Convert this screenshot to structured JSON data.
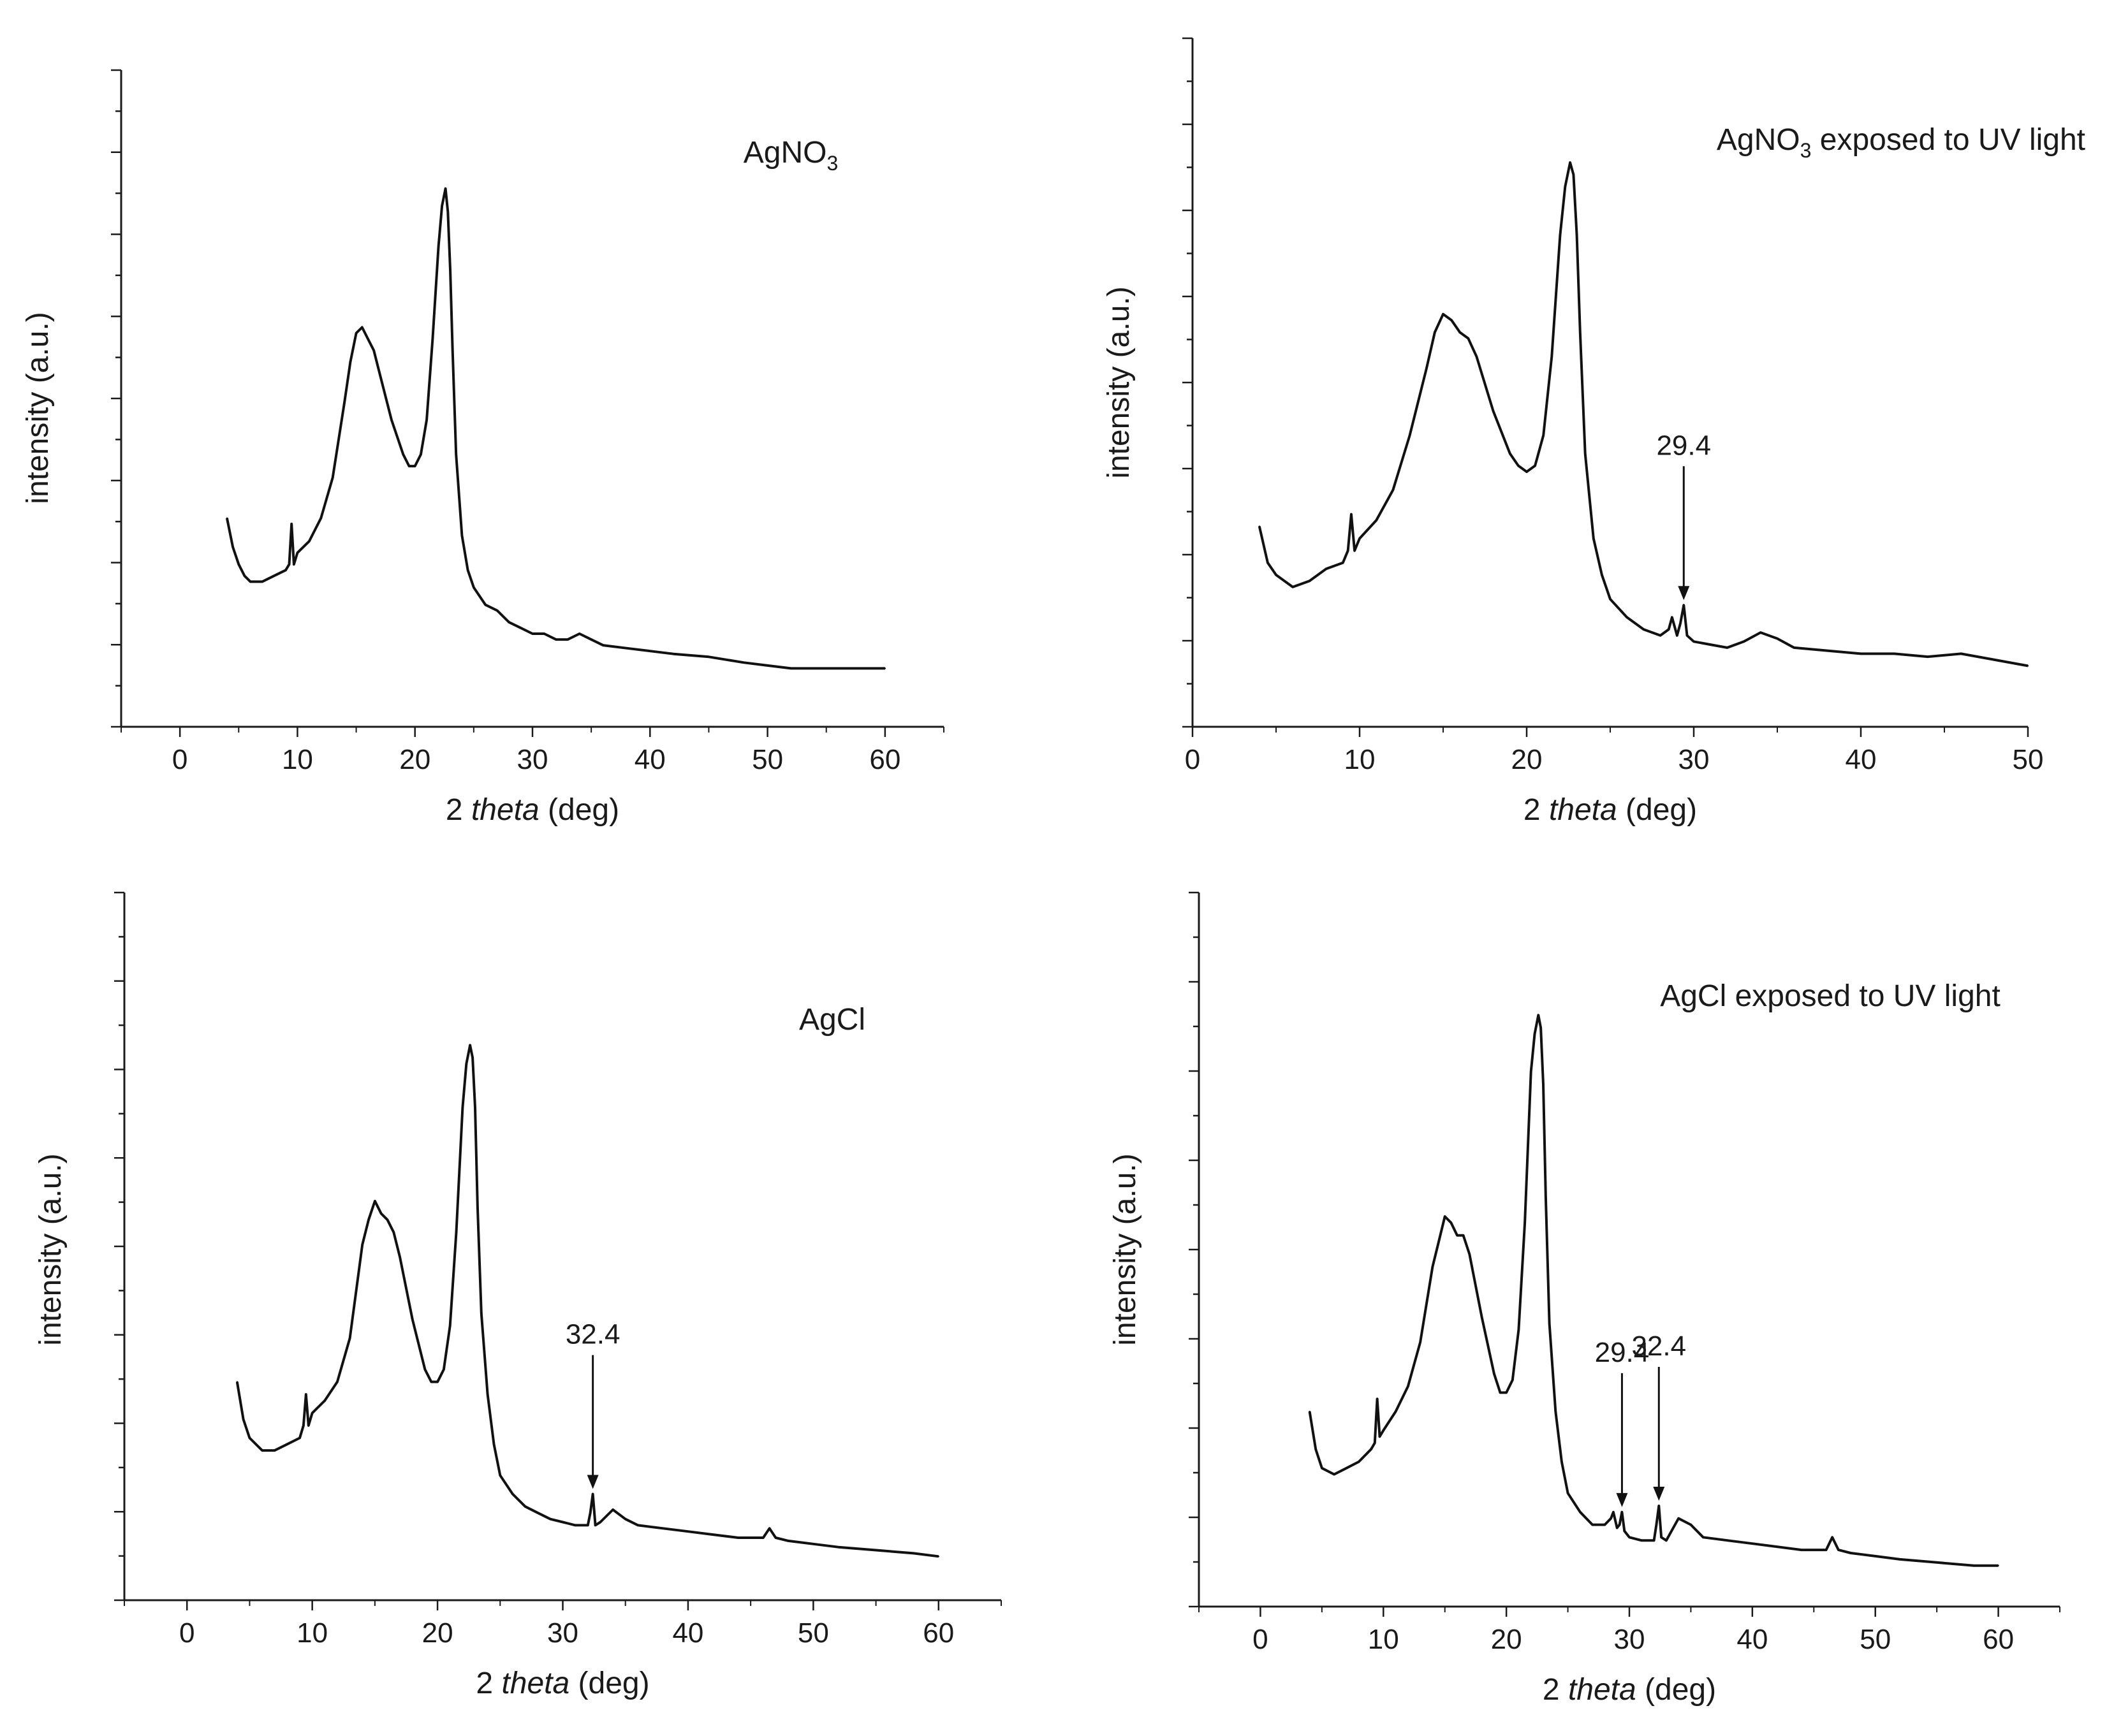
{
  "chart_data": [
    {
      "type": "line",
      "title": "AgNO",
      "title_sub": "3",
      "title_rest": "",
      "xlabel_num": "2",
      "xlabel_var": "theta",
      "xlabel_unit": "(deg)",
      "ylabel": "intensity (a.u.)",
      "xlim": [
        -5,
        65
      ],
      "ylim": [
        0,
        100
      ],
      "xticks": [
        0,
        10,
        20,
        30,
        40,
        50,
        60
      ],
      "tick_labels": [
        "0",
        "10",
        "20",
        "30",
        "40",
        "50",
        "60"
      ],
      "grid": false,
      "series": [
        {
          "name": "AgNO3",
          "x": [
            4,
            4.5,
            5,
            5.5,
            6,
            7,
            8,
            9,
            9.3,
            9.5,
            9.7,
            10,
            11,
            12,
            13,
            14,
            14.5,
            15,
            15.5,
            16,
            16.5,
            17,
            18,
            19,
            19.5,
            20,
            20.5,
            21,
            21.5,
            22,
            22.3,
            22.6,
            22.8,
            23,
            23.2,
            23.5,
            24,
            24.5,
            25,
            26,
            27,
            28,
            29,
            30,
            31,
            32,
            33,
            34,
            35,
            36,
            38,
            40,
            42,
            45,
            48,
            50,
            52,
            55,
            58,
            60
          ],
          "y": [
            35,
            30,
            27,
            25,
            24,
            24,
            25,
            26,
            27,
            34,
            27,
            29,
            31,
            35,
            42,
            55,
            62,
            67,
            68,
            66,
            64,
            60,
            52,
            46,
            44,
            44,
            46,
            52,
            66,
            82,
            89,
            92,
            88,
            78,
            64,
            46,
            32,
            26,
            23,
            20,
            19,
            17,
            16,
            15,
            15,
            14,
            14,
            15,
            14,
            13,
            12.5,
            12,
            11.5,
            11,
            10,
            9.5,
            9,
            9,
            9,
            9
          ]
        }
      ],
      "annotations": []
    },
    {
      "type": "line",
      "title": "AgNO",
      "title_sub": "3",
      "title_rest": " exposed to UV light",
      "xlabel_num": "2",
      "xlabel_var": "theta",
      "xlabel_unit": "(deg)",
      "ylabel": "intensity (a.u.)",
      "xlim": [
        0,
        50
      ],
      "ylim": [
        0,
        100
      ],
      "xticks": [
        0,
        10,
        20,
        30,
        40,
        50
      ],
      "tick_labels": [
        "0",
        "10",
        "20",
        "30",
        "40",
        "50"
      ],
      "grid": false,
      "series": [
        {
          "name": "AgNO3 exposed to UV light",
          "x": [
            4,
            4.5,
            5,
            6,
            7,
            8,
            9,
            9.3,
            9.5,
            9.7,
            10,
            11,
            12,
            13,
            14,
            14.5,
            15,
            15.5,
            16,
            16.5,
            17,
            18,
            19,
            19.5,
            20,
            20.5,
            21,
            21.5,
            22,
            22.3,
            22.6,
            22.8,
            23,
            23.2,
            23.5,
            24,
            24.5,
            25,
            26,
            27,
            28,
            28.5,
            28.7,
            29,
            29.2,
            29.4,
            29.6,
            30,
            31,
            32,
            33,
            34,
            35,
            36,
            38,
            40,
            42,
            44,
            46,
            47,
            48,
            50
          ],
          "y": [
            32,
            26,
            24,
            22,
            23,
            25,
            26,
            28,
            34,
            28,
            30,
            33,
            38,
            47,
            58,
            64,
            67,
            66,
            64,
            63,
            60,
            51,
            44,
            42,
            41,
            42,
            47,
            60,
            80,
            88,
            92,
            90,
            80,
            64,
            44,
            30,
            24,
            20,
            17,
            15,
            14,
            15,
            17,
            14,
            16,
            19,
            14,
            13,
            12.5,
            12,
            13,
            14.5,
            13.5,
            12,
            11.5,
            11,
            11,
            10.5,
            11,
            10.5,
            10,
            9
          ]
        }
      ],
      "annotations": [
        {
          "label": "29.4",
          "x": 29.4,
          "y": 19
        }
      ]
    },
    {
      "type": "line",
      "title": "AgCl",
      "title_sub": "",
      "title_rest": "",
      "xlabel_num": "2",
      "xlabel_var": "theta",
      "xlabel_unit": "(deg)",
      "ylabel": "intensity (a.u.)",
      "xlim": [
        -5,
        65
      ],
      "ylim": [
        0,
        100
      ],
      "xticks": [
        0,
        10,
        20,
        30,
        40,
        50,
        60
      ],
      "tick_labels": [
        "0",
        "10",
        "20",
        "30",
        "40",
        "50",
        "60"
      ],
      "grid": false,
      "series": [
        {
          "name": "AgCl",
          "x": [
            4,
            4.5,
            5,
            6,
            7,
            8,
            9,
            9.3,
            9.5,
            9.7,
            10,
            11,
            12,
            13,
            14,
            14.5,
            15,
            15.5,
            16,
            16.5,
            17,
            18,
            19,
            19.5,
            20,
            20.5,
            21,
            21.5,
            22,
            22.3,
            22.6,
            22.8,
            23,
            23.2,
            23.5,
            24,
            24.5,
            25,
            26,
            27,
            28,
            29,
            30,
            31,
            32,
            32.2,
            32.4,
            32.6,
            33,
            34,
            35,
            36,
            38,
            40,
            42,
            44,
            46,
            46.5,
            47,
            48,
            50,
            52,
            55,
            58,
            60
          ],
          "y": [
            34,
            28,
            25,
            23,
            23,
            24,
            25,
            27,
            32,
            27,
            29,
            31,
            34,
            41,
            56,
            60,
            63,
            61,
            60,
            58,
            54,
            44,
            36,
            34,
            34,
            36,
            43,
            58,
            78,
            85,
            88,
            86,
            78,
            62,
            45,
            32,
            24,
            19,
            16,
            14,
            13,
            12,
            11.5,
            11,
            11,
            13,
            16,
            11,
            11.5,
            13.5,
            12,
            11,
            10.5,
            10,
            9.5,
            9,
            9,
            10.5,
            9,
            8.5,
            8,
            7.5,
            7,
            6.5,
            6
          ]
        }
      ],
      "annotations": [
        {
          "label": "32.4",
          "x": 32.4,
          "y": 16
        }
      ]
    },
    {
      "type": "line",
      "title": "AgCl exposed to UV light",
      "title_sub": "",
      "title_rest": "",
      "xlabel_num": "2",
      "xlabel_var": "theta",
      "xlabel_unit": "(deg)",
      "ylabel": "intensity (a.u.)",
      "xlim": [
        -5,
        65
      ],
      "ylim": [
        0,
        100
      ],
      "xticks": [
        0,
        10,
        20,
        30,
        40,
        50,
        60
      ],
      "tick_labels": [
        "0",
        "10",
        "20",
        "30",
        "40",
        "50",
        "60"
      ],
      "grid": false,
      "series": [
        {
          "name": "AgCl exposed to UV light",
          "x": [
            4,
            4.5,
            5,
            6,
            7,
            8,
            9,
            9.3,
            9.5,
            9.7,
            10,
            11,
            12,
            13,
            14,
            14.5,
            15,
            15.5,
            16,
            16.5,
            17,
            18,
            19,
            19.5,
            20,
            20.5,
            21,
            21.5,
            22,
            22.3,
            22.6,
            22.8,
            23,
            23.2,
            23.5,
            24,
            24.5,
            25,
            26,
            27,
            28,
            28.5,
            28.7,
            29,
            29.2,
            29.4,
            29.6,
            30,
            31,
            32,
            32.2,
            32.4,
            32.6,
            33,
            34,
            35,
            36,
            38,
            40,
            42,
            44,
            46,
            46.5,
            47,
            48,
            50,
            52,
            55,
            58,
            60
          ],
          "y": [
            30,
            24,
            21,
            20,
            21,
            22,
            24,
            25,
            32,
            26,
            27,
            30,
            34,
            41,
            53,
            57,
            61,
            60,
            58,
            58,
            55,
            45,
            36,
            33,
            33,
            35,
            43,
            60,
            84,
            90,
            93,
            91,
            82,
            64,
            44,
            30,
            22,
            17,
            14,
            12,
            12,
            13,
            14,
            11.5,
            12,
            14,
            11,
            10,
            9.5,
            9.5,
            12,
            15,
            10,
            9.5,
            13,
            12,
            10,
            9.5,
            9,
            8.5,
            8,
            8,
            10,
            8,
            7.5,
            7,
            6.5,
            6,
            5.5,
            5.5
          ]
        }
      ],
      "annotations": [
        {
          "label": "29.4",
          "x": 29.4,
          "y": 14
        },
        {
          "label": "32.4",
          "x": 32.4,
          "y": 15
        }
      ]
    }
  ]
}
